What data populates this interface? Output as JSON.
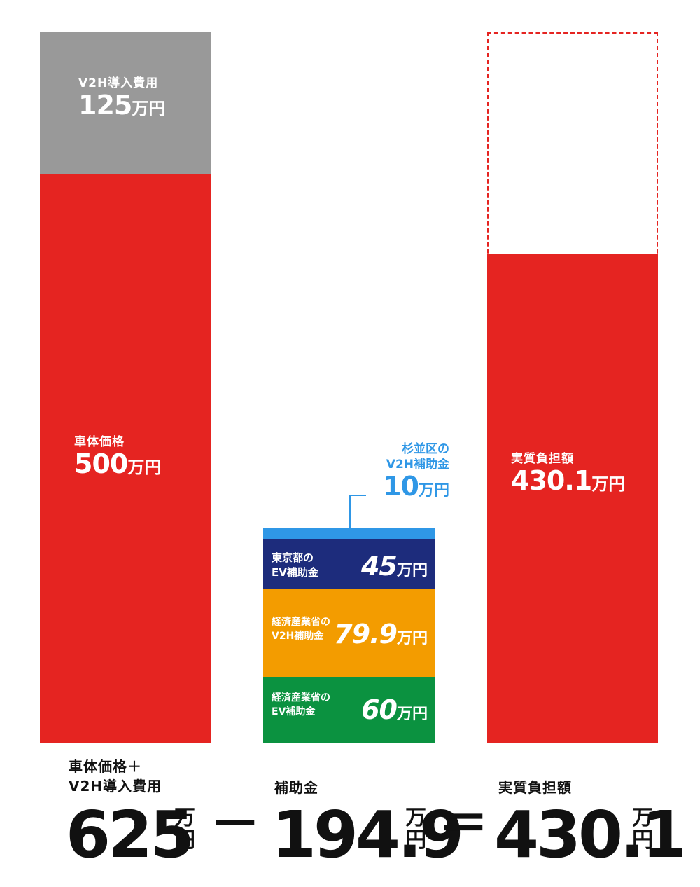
{
  "chart_data": {
    "type": "bar",
    "title": "",
    "unit": "万円",
    "ylim": [
      0,
      625
    ],
    "bars": [
      {
        "id": "left",
        "segments": [
          {
            "label": "車体価格",
            "value": 500,
            "color": "#e52421"
          },
          {
            "label": "V2H導入費用",
            "value": 125,
            "color": "#999999"
          }
        ]
      },
      {
        "id": "middle",
        "segments": [
          {
            "label_lines": [
              "経済産業省の",
              "EV補助金"
            ],
            "value": 60,
            "color": "#0b9240"
          },
          {
            "label_lines": [
              "経済産業省の",
              "V2H補助金"
            ],
            "value": 79.9,
            "color": "#f39c00"
          },
          {
            "label_lines": [
              "東京都の",
              "EV補助金"
            ],
            "value": 45,
            "color": "#1d2c7c"
          },
          {
            "label_lines": [
              "杉並区の",
              "V2H補助金"
            ],
            "value": 10,
            "color": "#2f97e6"
          }
        ]
      },
      {
        "id": "right",
        "segments": [
          {
            "label": "実質負担額",
            "value": 430.1,
            "color": "#e52421"
          }
        ],
        "outline_total": 625,
        "outline_color": "#e52421"
      }
    ]
  },
  "labels": {
    "v2h_cost": {
      "name": "V2H導入費用",
      "num": "125",
      "unit": "万円"
    },
    "car_price": {
      "name": "車体価格",
      "num": "500",
      "unit": "万円"
    },
    "burden": {
      "name": "実質負担額",
      "num": "430.1",
      "unit": "万円"
    },
    "suginami": {
      "line1": "杉並区の",
      "line2": "V2H補助金",
      "num": "10",
      "unit": "万円",
      "color": "#2f97e6"
    },
    "tokyo": {
      "line1": "東京都の",
      "line2": "EV補助金",
      "num": "45",
      "unit": "万円"
    },
    "meti_v2h": {
      "line1": "経済産業省の",
      "line2": "V2H補助金",
      "num": "79.9",
      "unit": "万円"
    },
    "meti_ev": {
      "line1": "経済産業省の",
      "line2": "EV補助金",
      "num": "60",
      "unit": "万円"
    }
  },
  "equation": {
    "left": {
      "cap1": "車体価格＋",
      "cap2": "V2H導入費用",
      "num": "625",
      "unit1": "万",
      "unit2": "円"
    },
    "minus": "－",
    "middle": {
      "cap": "補助金",
      "num": "194.9",
      "unit1": "万",
      "unit2": "円"
    },
    "equals": "＝",
    "right": {
      "cap": "実質負担額",
      "num": "430.1",
      "unit1": "万",
      "unit2": "円"
    }
  }
}
